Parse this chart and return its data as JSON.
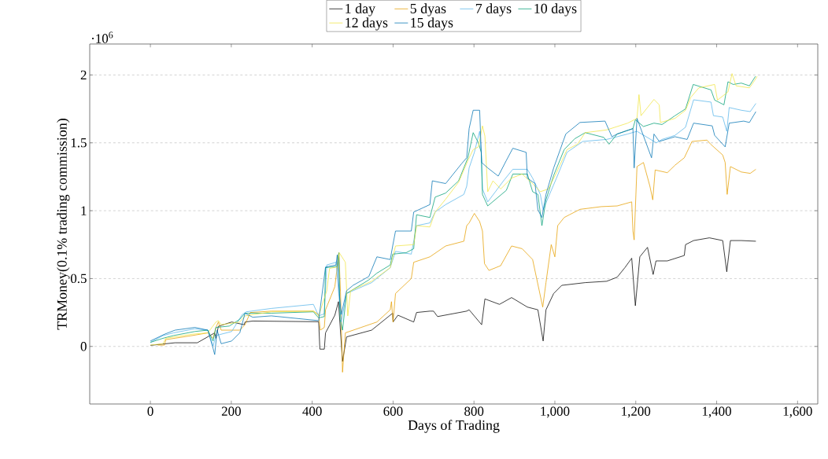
{
  "chart_data": {
    "type": "line",
    "xlabel": "Days of Trading",
    "ylabel": "TRMoney(0.1% trading commission)",
    "annotations": [
      "·10$^{6}$"
    ],
    "xlim": [
      -150,
      1650
    ],
    "xticks": [
      0,
      200,
      400,
      600,
      800,
      {
        "value": 1000,
        "label": "1,000"
      },
      {
        "value": 1200,
        "label": "1,200"
      },
      {
        "value": 1400,
        "label": "1,400"
      },
      {
        "value": 1600,
        "label": "1,600"
      }
    ],
    "ylim": [
      -0.424,
      2.228
    ],
    "yticks": [
      0,
      0.5,
      1,
      1.5,
      2
    ],
    "grid": "y",
    "legend": "top",
    "marker": "none",
    "line_style": "solid",
    "series": [
      {
        "name": "1 day",
        "color": "#000000",
        "x": [
          0,
          61,
          116,
          159,
          162,
          168,
          201,
          232,
          234,
          253,
          416,
          419,
          430,
          433,
          456,
          465,
          475,
          485,
          547,
          599,
          600,
          612,
          651,
          658,
          691,
          700,
          710,
          782,
          788,
          819,
          827,
          863,
          893,
          932,
          958,
          971,
          978,
          997,
          1017,
          1075,
          1128,
          1154,
          1173,
          1190,
          1199,
          1210,
          1229,
          1243,
          1250,
          1278,
          1320,
          1323,
          1343,
          1382,
          1415,
          1425,
          1434,
          1461,
          1497
        ],
        "values": [
          0.008,
          0.027,
          0.027,
          0.1,
          0.06,
          0.148,
          0.18,
          0.16,
          0.18,
          0.187,
          0.182,
          -0.02,
          -0.02,
          0.1,
          0.23,
          0.33,
          -0.11,
          0.07,
          0.12,
          0.245,
          0.18,
          0.23,
          0.18,
          0.25,
          0.26,
          0.26,
          0.22,
          0.26,
          0.27,
          0.16,
          0.35,
          0.31,
          0.36,
          0.29,
          0.27,
          0.04,
          0.27,
          0.39,
          0.45,
          0.47,
          0.48,
          0.51,
          0.58,
          0.65,
          0.3,
          0.66,
          0.73,
          0.53,
          0.63,
          0.63,
          0.67,
          0.75,
          0.78,
          0.8,
          0.78,
          0.55,
          0.78,
          0.78,
          0.775
        ]
      },
      {
        "name": "5 dyas",
        "color": "#e69f00",
        "x": [
          18,
          35,
          38,
          103,
          142,
          155,
          162,
          168,
          175,
          221,
          234,
          247,
          299,
          403,
          416,
          420,
          430,
          433,
          456,
          466,
          470,
          475,
          482,
          521,
          560,
          593,
          596,
          600,
          606,
          645,
          651,
          691,
          730,
          775,
          782,
          788,
          801,
          814,
          821,
          826,
          837,
          866,
          893,
          919,
          945,
          970,
          978,
          991,
          1000,
          1007,
          1023,
          1036,
          1062,
          1115,
          1154,
          1190,
          1193,
          1196,
          1203,
          1219,
          1235,
          1242,
          1248,
          1278,
          1297,
          1320,
          1339,
          1376,
          1385,
          1415,
          1421,
          1426,
          1434,
          1461,
          1483,
          1497
        ],
        "values": [
          0.01,
          0.01,
          0.05,
          0.08,
          0.1,
          0.06,
          0.14,
          0.18,
          0.12,
          0.12,
          0.16,
          0.25,
          0.26,
          0.26,
          0.235,
          0.12,
          0.14,
          0.27,
          0.44,
          0.69,
          0.4,
          -0.19,
          0.1,
          0.14,
          0.18,
          0.27,
          0.33,
          0.18,
          0.39,
          0.5,
          0.62,
          0.66,
          0.74,
          0.775,
          0.89,
          0.91,
          0.98,
          0.92,
          0.85,
          0.61,
          0.56,
          0.595,
          0.74,
          0.72,
          0.64,
          0.29,
          0.47,
          0.75,
          0.66,
          0.89,
          0.95,
          0.97,
          1.01,
          1.03,
          1.035,
          1.065,
          0.85,
          0.785,
          1.325,
          1.355,
          1.18,
          1.08,
          1.3,
          1.28,
          1.335,
          1.39,
          1.51,
          1.52,
          1.49,
          1.41,
          1.355,
          1.12,
          1.325,
          1.285,
          1.275,
          1.305
        ]
      },
      {
        "name": "7 days",
        "color": "#56b4e9",
        "x": [
          0,
          31,
          57,
          110,
          142,
          155,
          162,
          201,
          227,
          237,
          299,
          403,
          416,
          430,
          436,
          459,
          469,
          472,
          485,
          547,
          593,
          606,
          645,
          658,
          691,
          704,
          730,
          775,
          782,
          788,
          801,
          814,
          818,
          821,
          834,
          853,
          873,
          896,
          932,
          945,
          964,
          971,
          984,
          1004,
          1030,
          1069,
          1128,
          1180,
          1203,
          1251,
          1265,
          1297,
          1323,
          1343,
          1386,
          1392,
          1415,
          1425,
          1431,
          1461,
          1483,
          1497
        ],
        "values": [
          0.03,
          0.08,
          0.1,
          0.13,
          0.12,
          0.004,
          0.08,
          0.11,
          0.235,
          0.255,
          0.28,
          0.31,
          0.225,
          0.24,
          0.6,
          0.62,
          0.27,
          0.18,
          0.39,
          0.47,
          0.58,
          0.7,
          0.68,
          0.89,
          0.91,
          0.99,
          1.045,
          1.12,
          1.18,
          1.315,
          1.43,
          1.585,
          1.43,
          1.16,
          1.065,
          1.14,
          1.22,
          1.305,
          1.305,
          1.24,
          1.12,
          1.007,
          1.1,
          1.24,
          1.43,
          1.51,
          1.525,
          1.565,
          1.585,
          1.5,
          1.525,
          1.555,
          1.615,
          1.817,
          1.8,
          1.7,
          1.69,
          1.585,
          1.76,
          1.74,
          1.73,
          1.79
        ]
      },
      {
        "name": "10 days",
        "color": "#009e73",
        "x": [
          0,
          31,
          57,
          110,
          142,
          155,
          162,
          195,
          221,
          234,
          299,
          403,
          416,
          430,
          433,
          462,
          466,
          469,
          475,
          485,
          540,
          560,
          593,
          599,
          632,
          651,
          658,
          691,
          704,
          730,
          762,
          785,
          798,
          811,
          818,
          821,
          834,
          880,
          896,
          932,
          945,
          958,
          968,
          978,
          997,
          1023,
          1049,
          1075,
          1121,
          1134,
          1154,
          1193,
          1199,
          1219,
          1245,
          1265,
          1297,
          1323,
          1342,
          1386,
          1395,
          1418,
          1428,
          1441,
          1461,
          1481,
          1496
        ],
        "values": [
          0.03,
          0.06,
          0.08,
          0.11,
          0.12,
          0.04,
          0.14,
          0.15,
          0.2,
          0.245,
          0.245,
          0.255,
          0.21,
          0.22,
          0.58,
          0.59,
          0.69,
          0.2,
          0.12,
          0.39,
          0.49,
          0.54,
          0.6,
          0.68,
          0.69,
          0.72,
          0.97,
          0.95,
          1.1,
          1.13,
          1.22,
          1.39,
          1.575,
          1.5,
          1.43,
          1.12,
          1.035,
          1.15,
          1.27,
          1.27,
          1.14,
          1.12,
          0.89,
          1.08,
          1.26,
          1.45,
          1.53,
          1.575,
          1.54,
          1.49,
          1.565,
          1.605,
          1.67,
          1.62,
          1.645,
          1.635,
          1.7,
          1.75,
          1.93,
          1.89,
          1.815,
          1.78,
          1.95,
          1.93,
          1.94,
          1.92,
          1.99
        ]
      },
      {
        "name": "12 days",
        "color": "#f0e442",
        "x": [
          0,
          31,
          38,
          103,
          142,
          162,
          168,
          175,
          221,
          234,
          299,
          403,
          416,
          436,
          443,
          462,
          467,
          482,
          488,
          495,
          547,
          593,
          606,
          651,
          658,
          691,
          704,
          730,
          762,
          785,
          798,
          811,
          821,
          827,
          834,
          847,
          866,
          893,
          919,
          945,
          964,
          984,
          1004,
          1030,
          1056,
          1075,
          1128,
          1180,
          1203,
          1208,
          1213,
          1245,
          1258,
          1261,
          1297,
          1323,
          1336,
          1356,
          1395,
          1402,
          1428,
          1438,
          1448,
          1481,
          1494,
          1500
        ],
        "values": [
          0.01,
          0.02,
          0.06,
          0.09,
          0.1,
          0.18,
          0.19,
          0.16,
          0.18,
          0.225,
          0.255,
          0.26,
          0.225,
          0.41,
          0.575,
          0.585,
          0.69,
          0.62,
          0.225,
          0.41,
          0.48,
          0.58,
          0.74,
          0.75,
          0.89,
          0.88,
          0.99,
          1.085,
          1.21,
          1.37,
          1.45,
          1.47,
          1.625,
          1.55,
          1.14,
          1.22,
          1.16,
          1.24,
          1.27,
          1.2,
          1.14,
          1.16,
          1.28,
          1.45,
          1.49,
          1.575,
          1.595,
          1.645,
          1.68,
          1.855,
          1.7,
          1.82,
          1.78,
          1.65,
          1.68,
          1.74,
          1.835,
          1.905,
          1.93,
          1.815,
          1.875,
          2.01,
          1.92,
          1.905,
          1.96,
          1.99
        ]
      },
      {
        "name": "15 days",
        "color": "#0072b2",
        "x": [
          0,
          35,
          61,
          110,
          142,
          155,
          159,
          165,
          175,
          201,
          221,
          234,
          253,
          299,
          416,
          433,
          459,
          462,
          467,
          472,
          485,
          501,
          540,
          560,
          593,
          599,
          606,
          645,
          651,
          691,
          697,
          730,
          769,
          782,
          788,
          798,
          814,
          819,
          834,
          860,
          880,
          896,
          929,
          932,
          951,
          958,
          968,
          978,
          997,
          1027,
          1062,
          1124,
          1141,
          1154,
          1193,
          1196,
          1203,
          1239,
          1245,
          1258,
          1297,
          1327,
          1343,
          1389,
          1395,
          1421,
          1431,
          1467,
          1481,
          1497
        ],
        "values": [
          0.04,
          0.09,
          0.12,
          0.14,
          0.12,
          -0.015,
          -0.06,
          0.12,
          0.02,
          0.04,
          0.1,
          0.245,
          0.215,
          0.225,
          0.19,
          0.585,
          0.6,
          0.675,
          0.39,
          0.235,
          0.41,
          0.45,
          0.515,
          0.66,
          0.64,
          0.74,
          0.85,
          0.85,
          0.99,
          1.045,
          1.22,
          1.2,
          1.345,
          1.39,
          1.605,
          1.74,
          1.74,
          1.355,
          1.315,
          1.255,
          1.37,
          1.46,
          1.43,
          1.24,
          1.2,
          1.007,
          0.95,
          1.12,
          1.315,
          1.565,
          1.65,
          1.66,
          1.545,
          1.565,
          1.605,
          1.315,
          1.68,
          1.39,
          1.565,
          1.51,
          1.545,
          1.525,
          1.645,
          1.625,
          1.555,
          1.47,
          1.645,
          1.66,
          1.65,
          1.73
        ]
      }
    ]
  }
}
